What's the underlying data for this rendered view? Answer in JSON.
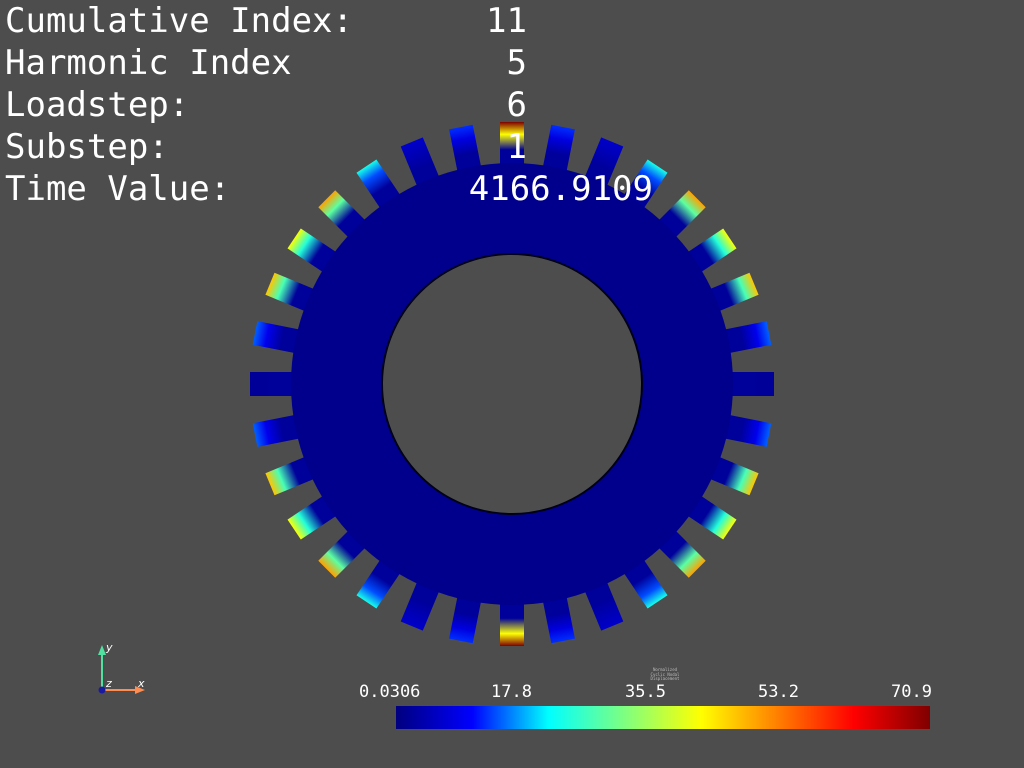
{
  "info": [
    {
      "label": "Cumulative Index:",
      "value": "11"
    },
    {
      "label": "Harmonic Index",
      "value": "5"
    },
    {
      "label": "Loadstep:",
      "value": "6"
    },
    {
      "label": "Substep:",
      "value": "1"
    },
    {
      "label": "Time Value:",
      "value": "4166.9109"
    }
  ],
  "colorbar": {
    "title_lines": [
      "Normalized",
      "Cyclic Nodal",
      "Displacement"
    ],
    "ticks": [
      "0.0306",
      "17.8",
      "35.5",
      "53.2",
      "70.9"
    ],
    "min": 0.0306,
    "max": 70.9,
    "colormap": [
      "#00007f",
      "#0000ff",
      "#00ffff",
      "#7fff7f",
      "#ffff00",
      "#ff7f00",
      "#ff0000",
      "#7f0000"
    ]
  },
  "axes": {
    "x": "x",
    "y": "y",
    "z": "z",
    "x_color": "#ff8c50",
    "y_color": "#50e0a0",
    "origin_color": "#1a1aa0"
  },
  "colors": {
    "background": "#4d4d4d",
    "rotor": "#00008c",
    "text": "#ffffff"
  },
  "tooth_values": [
    70.9,
    12,
    6,
    22,
    48,
    40,
    45,
    14,
    2,
    14,
    45,
    40,
    48,
    22,
    6,
    12,
    70.9,
    12,
    6,
    22,
    48,
    40,
    45,
    14,
    2,
    14,
    45,
    40,
    48,
    22,
    6,
    12
  ]
}
